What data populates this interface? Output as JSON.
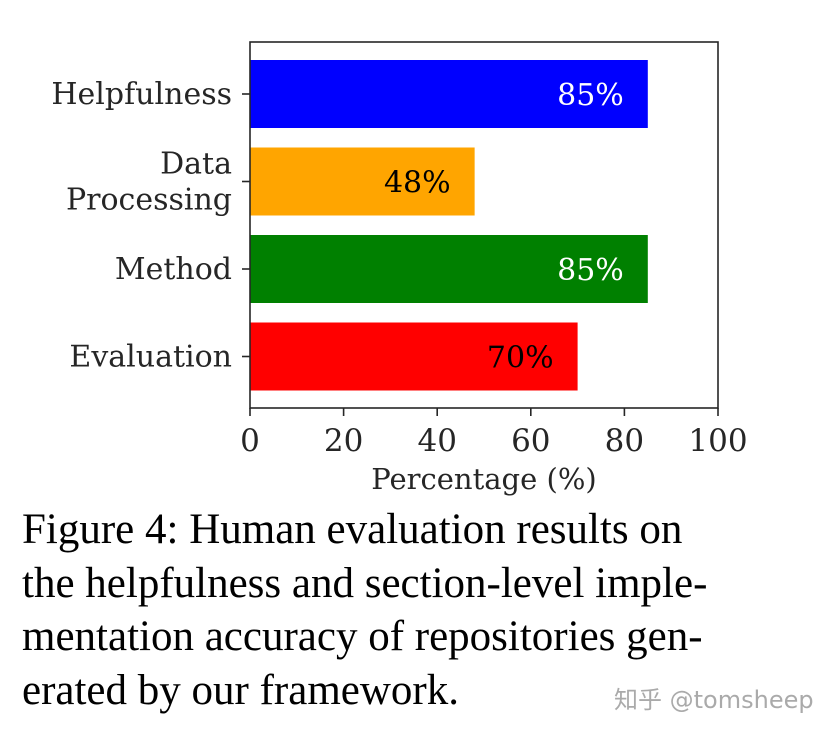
{
  "chart_data": {
    "type": "bar",
    "orientation": "horizontal",
    "categories": [
      [
        "Helpfulness"
      ],
      [
        "Data",
        "Processing"
      ],
      [
        "Method"
      ],
      [
        "Evaluation"
      ]
    ],
    "values": [
      85,
      48,
      85,
      70
    ],
    "value_labels": [
      "85%",
      "48%",
      "85%",
      "70%"
    ],
    "bar_colors": [
      "#0000ff",
      "#ffa500",
      "#008000",
      "#ff0000"
    ],
    "label_colors": [
      "#ffffff",
      "#000000",
      "#ffffff",
      "#000000"
    ],
    "xlabel": "Percentage (%)",
    "xlim": [
      0,
      100
    ],
    "xticks": [
      0,
      20,
      40,
      60,
      80,
      100
    ],
    "grid": false
  },
  "caption": {
    "lines": [
      "Figure 4: Human evaluation results on",
      "the helpfulness and section-level imple-",
      "mentation accuracy of repositories gen-",
      "erated by our framework."
    ]
  },
  "watermark": "知乎 @tomsheep"
}
